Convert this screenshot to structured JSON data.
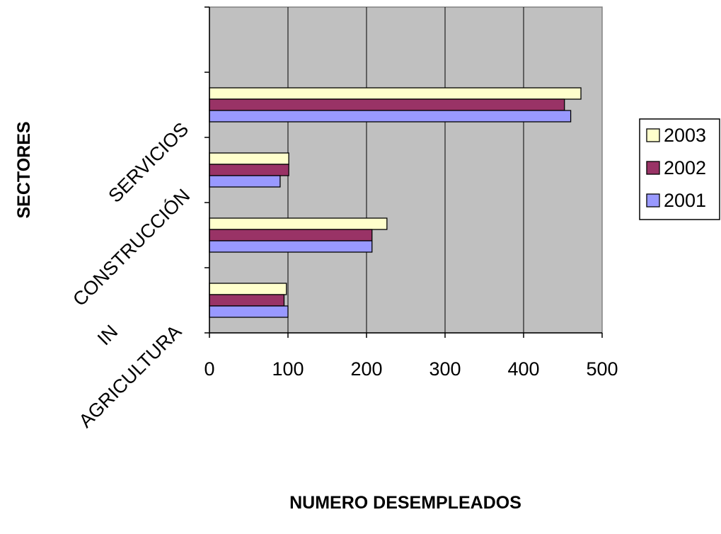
{
  "chart_data": {
    "type": "bar",
    "orientation": "horizontal",
    "categories": [
      "AGRICULTURA",
      "INDUSTRIA",
      "CONSTRUCCIÓN",
      "SERVICIOS"
    ],
    "category_labels_visible": [
      "AGRICULTURA",
      "IN",
      "CONSTRUCCIÓN",
      "SERVICIOS"
    ],
    "series": [
      {
        "name": "2001",
        "color": "#9999ff",
        "values": [
          100,
          207,
          90,
          460
        ]
      },
      {
        "name": "2002",
        "color": "#993366",
        "values": [
          95,
          207,
          101,
          452
        ]
      },
      {
        "name": "2003",
        "color": "#ffffcc",
        "values": [
          98,
          226,
          101,
          473
        ]
      }
    ],
    "xlabel": "NUMERO DESEMPLEADOS",
    "ylabel": "SECTORES",
    "xlim": [
      0,
      500
    ],
    "xticks": [
      "0",
      "100",
      "200",
      "300",
      "400",
      "500"
    ],
    "plot_background": "#c0c0c0",
    "grid": "vertical",
    "legend": {
      "position": "right",
      "order": [
        "2003",
        "2002",
        "2001"
      ]
    }
  }
}
